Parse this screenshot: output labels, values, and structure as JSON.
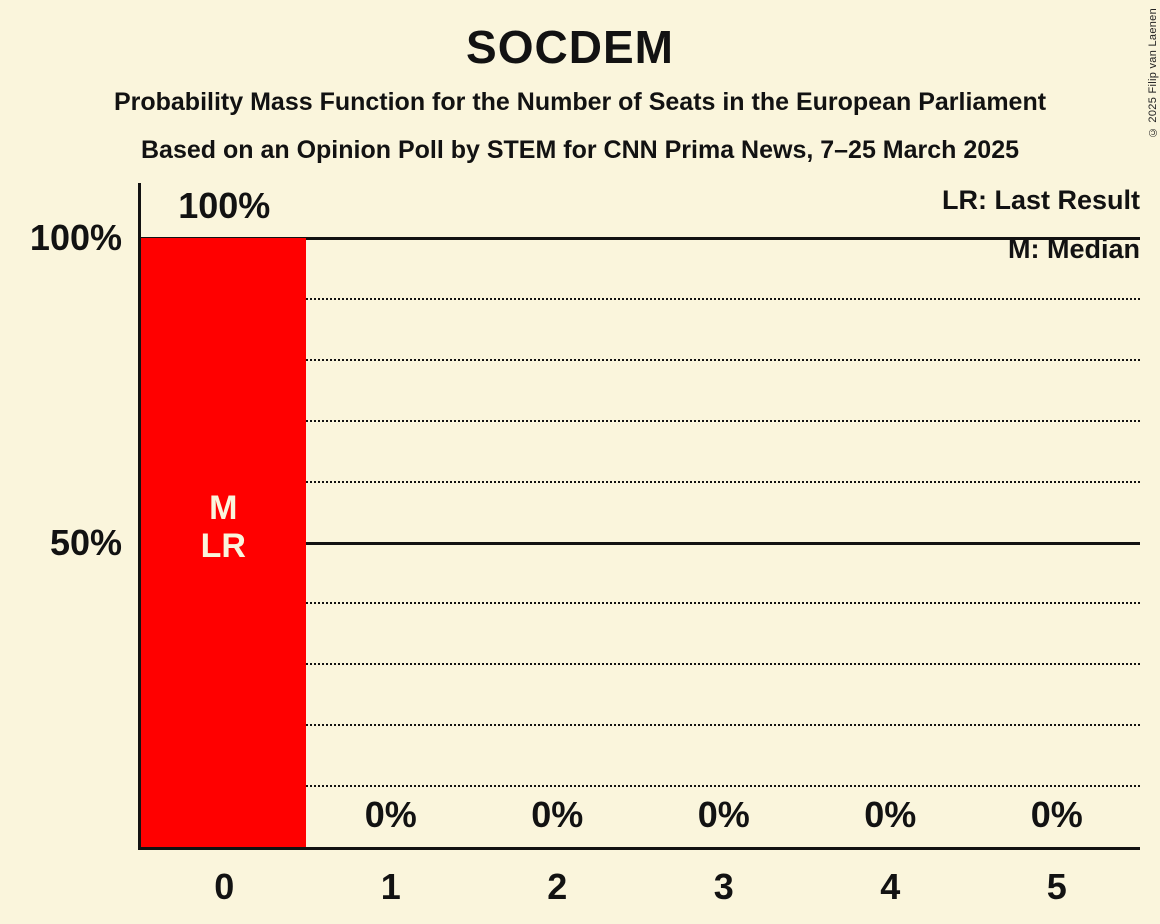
{
  "title": "SOCDEM",
  "subtitle1": "Probability Mass Function for the Number of Seats in the European Parliament",
  "subtitle2": "Based on an Opinion Poll by STEM for CNN Prima News, 7–25 March 2025",
  "copyright": "© 2025 Filip van Laenen",
  "legend": {
    "lr": "LR: Last Result",
    "m": "M: Median"
  },
  "colors": {
    "background": "#FAF5DC",
    "bar": "#FF0000",
    "text": "#121212",
    "bar_text": "#FAF5DC"
  },
  "chart_data": {
    "type": "bar",
    "title": "SOCDEM",
    "categories": [
      "0",
      "1",
      "2",
      "3",
      "4",
      "5"
    ],
    "values": [
      100,
      0,
      0,
      0,
      0,
      0
    ],
    "bar_labels": [
      "100%",
      "0%",
      "0%",
      "0%",
      "0%",
      "0%"
    ],
    "xlabel": "",
    "ylabel": "",
    "ylim": [
      0,
      100
    ],
    "yticks": [
      {
        "pct": 100,
        "label": "100%"
      },
      {
        "pct": 50,
        "label": "50%"
      }
    ],
    "gridlines": {
      "solid_pct": [
        100,
        50
      ],
      "dotted_pct": [
        90,
        80,
        70,
        60,
        40,
        30,
        20,
        10
      ]
    },
    "annotations": [
      {
        "bar_index": 0,
        "lines": [
          "M",
          "LR"
        ]
      }
    ],
    "legend_notes": [
      "LR: Last Result",
      "M: Median"
    ],
    "grid": true,
    "legend_position": "top-right"
  }
}
